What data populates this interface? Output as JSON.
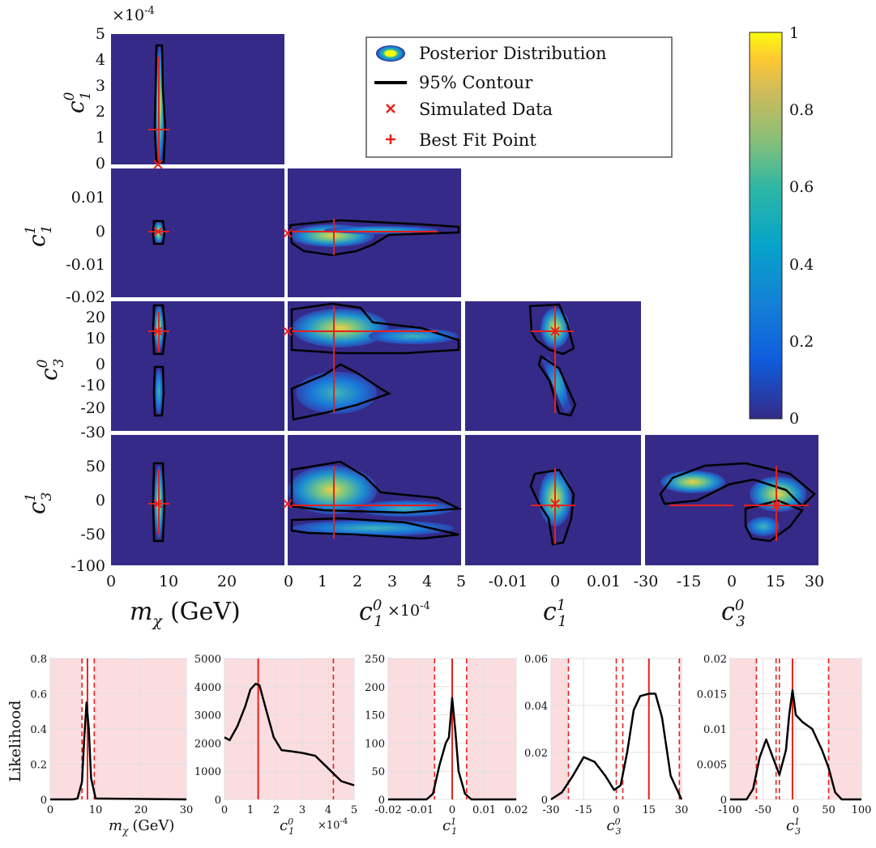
{
  "chart_data": [
    {
      "type": "heatmap",
      "title": "",
      "layout": "triangle corner plot",
      "parameters": [
        {
          "symbol": "m_χ",
          "label": "m",
          "sub": "χ",
          "unit": "(GeV)",
          "range": [
            0,
            30
          ],
          "ticks": [
            "0",
            "10",
            "20"
          ]
        },
        {
          "symbol": "c_1^0",
          "label": "c",
          "sub": "1",
          "sup": "0",
          "range": [
            0,
            5
          ],
          "scale": "×10",
          "scale_exp": "-4",
          "ticks": [
            "0",
            "1",
            "2",
            "3",
            "4",
            "5"
          ]
        },
        {
          "symbol": "c_1^1",
          "label": "c",
          "sub": "1",
          "sup": "1",
          "range": [
            -0.02,
            0.015
          ],
          "ticks": [
            "-0.01",
            "0",
            "0.01"
          ]
        },
        {
          "symbol": "c_3^0",
          "label": "c",
          "sub": "3",
          "sup": "0",
          "range": [
            -30,
            30
          ],
          "ticks": [
            "-30",
            "-15",
            "0",
            "15",
            "30"
          ]
        },
        {
          "symbol": "c_3^1",
          "label": "c",
          "sub": "3",
          "sup": "1"
        }
      ],
      "y_axes": [
        {
          "row": "c_1^0",
          "ticks": [
            "5",
            "4",
            "3",
            "2",
            "1",
            "0"
          ],
          "scale": "×10",
          "scale_exp": "-4"
        },
        {
          "row": "c_1^1",
          "ticks": [
            "0.01",
            "0",
            "-0.01",
            "-0.02"
          ]
        },
        {
          "row": "c_3^0",
          "ticks": [
            "20",
            "10",
            "0",
            "-10",
            "-20",
            "-30"
          ]
        },
        {
          "row": "c_3^1",
          "ticks": [
            "50",
            "0",
            "-50",
            "-100"
          ]
        }
      ],
      "legend": {
        "placement": "top-center",
        "entries": [
          "Posterior Distribution",
          "95% Contour",
          "Simulated Data",
          "Best Fit Point"
        ]
      },
      "colorbar": {
        "range": [
          0,
          1
        ],
        "ticks": [
          "1",
          "0.8",
          "0.6",
          "0.4",
          "0.2",
          "0"
        ],
        "colormap": "parula"
      },
      "simulated_data": {
        "m_χ": 8,
        "c_1^0": 0,
        "c_1^1": 0,
        "c_3^0": 15,
        "c_3^1": -5
      },
      "best_fit": {
        "m_χ": 8,
        "c_1^0": 0.00013,
        "c_1^1": 0,
        "c_3^0": 15,
        "c_3^1": -5
      }
    },
    {
      "type": "line",
      "ylabel": "Likelihood",
      "shading": "pink outside credible region",
      "panels": [
        {
          "param": "m_χ",
          "xticks": [
            "0",
            "10",
            "20",
            "30"
          ],
          "yticks": [
            "0",
            "0.2",
            "0.4",
            "0.6",
            "0.8"
          ],
          "xlim": [
            0,
            30
          ],
          "ylim": [
            0,
            0.8
          ],
          "x": [
            0,
            5,
            6,
            7,
            7.5,
            8,
            8.5,
            9,
            10,
            30
          ],
          "values": [
            0,
            0,
            0.005,
            0.1,
            0.35,
            0.55,
            0.4,
            0.12,
            0.005,
            0
          ],
          "red_line": 8.2,
          "dashed_red": [
            7,
            9.7
          ]
        },
        {
          "param": "c_1^0",
          "scale": "×10",
          "scale_exp": "-4",
          "xticks": [
            "0",
            "1",
            "2",
            "3",
            "4",
            "5"
          ],
          "yticks": [
            "0",
            "1000",
            "2000",
            "3000",
            "4000",
            "5000"
          ],
          "xlim": [
            0,
            5
          ],
          "ylim": [
            0,
            5000
          ],
          "x": [
            0,
            0.2,
            0.5,
            0.8,
            1.0,
            1.2,
            1.35,
            1.6,
            1.9,
            2.2,
            2.6,
            3.0,
            3.5,
            4.0,
            4.5,
            5.0
          ],
          "values": [
            2200,
            2100,
            2600,
            3300,
            3900,
            4100,
            4050,
            3200,
            2200,
            1750,
            1700,
            1650,
            1550,
            1100,
            650,
            500
          ],
          "red_line": 1.3,
          "dashed_red": [
            4.2
          ]
        },
        {
          "param": "c_1^1",
          "xticks": [
            "-0.02",
            "-0.01",
            "0",
            "0.01",
            "0.02"
          ],
          "yticks": [
            "0",
            "50",
            "100",
            "150",
            "200",
            "250"
          ],
          "xlim": [
            -0.02,
            0.02
          ],
          "ylim": [
            0,
            250
          ],
          "x": [
            -0.02,
            -0.008,
            -0.006,
            -0.004,
            -0.002,
            -0.001,
            0,
            0.001,
            0.002,
            0.004,
            0.006,
            0.02
          ],
          "values": [
            0,
            0,
            10,
            60,
            100,
            110,
            180,
            120,
            50,
            10,
            0,
            0
          ],
          "red_line": 0,
          "dashed_red": [
            -0.0055,
            0.0045
          ]
        },
        {
          "param": "c_3^0",
          "xticks": [
            "-30",
            "-15",
            "0",
            "15",
            "30"
          ],
          "yticks": [
            "0",
            "0.02",
            "0.04",
            "0.06"
          ],
          "xlim": [
            -30,
            30
          ],
          "ylim": [
            0,
            0.06
          ],
          "x": [
            -30,
            -25,
            -20,
            -15,
            -10,
            -5,
            -1,
            2,
            5,
            8,
            11,
            15,
            18,
            21,
            25,
            30
          ],
          "values": [
            0,
            0.003,
            0.01,
            0.018,
            0.016,
            0.01,
            0.004,
            0.006,
            0.02,
            0.038,
            0.044,
            0.045,
            0.045,
            0.035,
            0.01,
            0
          ],
          "red_line": 15,
          "dashed_red": [
            -22,
            0,
            3,
            29
          ]
        },
        {
          "param": "c_3^1",
          "xticks": [
            "-100",
            "-50",
            "0",
            "50",
            "100"
          ],
          "yticks": [
            "0",
            "0.005",
            "0.01",
            "0.015",
            "0.02"
          ],
          "xlim": [
            -100,
            100
          ],
          "ylim": [
            0,
            0.02
          ],
          "x": [
            -100,
            -75,
            -65,
            -55,
            -45,
            -35,
            -25,
            -15,
            -10,
            -5,
            0,
            10,
            25,
            40,
            50,
            60,
            70,
            100
          ],
          "values": [
            0,
            0,
            0.0015,
            0.006,
            0.0085,
            0.006,
            0.0035,
            0.007,
            0.012,
            0.0155,
            0.012,
            0.011,
            0.01,
            0.007,
            0.0045,
            0.001,
            0,
            0
          ],
          "red_line": -5,
          "dashed_red": [
            -60,
            -30,
            -25,
            50
          ]
        }
      ]
    }
  ]
}
